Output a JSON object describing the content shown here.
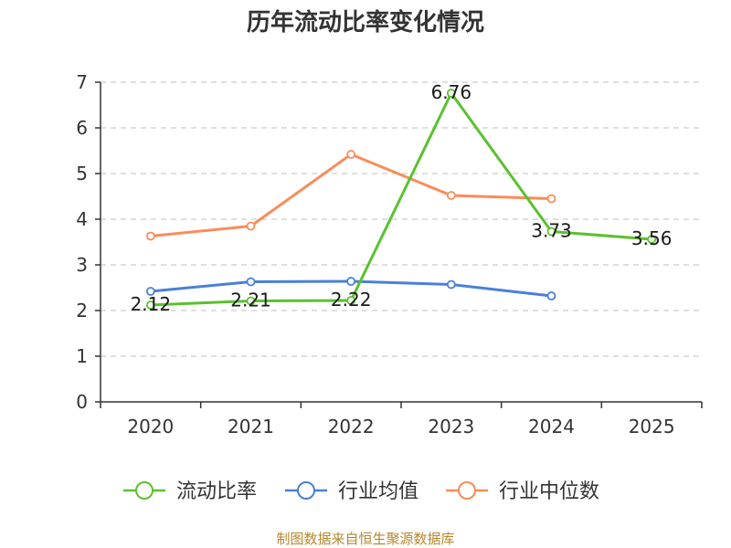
{
  "chart_data": {
    "type": "line",
    "title": "历年流动比率变化情况",
    "categories": [
      "2020",
      "2021",
      "2022",
      "2023",
      "2024",
      "2025"
    ],
    "ylim": [
      0,
      7
    ],
    "yticks": [
      0,
      1,
      2,
      3,
      4,
      5,
      6,
      7
    ],
    "grid": true,
    "legend_position": "bottom",
    "series": [
      {
        "name": "流动比率",
        "color": "#5ac12f",
        "show_labels": true,
        "values": [
          2.12,
          2.21,
          2.22,
          6.76,
          3.73,
          3.56
        ]
      },
      {
        "name": "行业均值",
        "color": "#4a7fd9",
        "show_labels": false,
        "values": [
          2.42,
          2.63,
          2.64,
          2.57,
          2.32,
          null
        ]
      },
      {
        "name": "行业中位数",
        "color": "#f98c5a",
        "show_labels": false,
        "values": [
          3.63,
          3.85,
          5.42,
          4.52,
          4.45,
          null
        ]
      }
    ]
  },
  "source_text": "制图数据来自恒生聚源数据库"
}
